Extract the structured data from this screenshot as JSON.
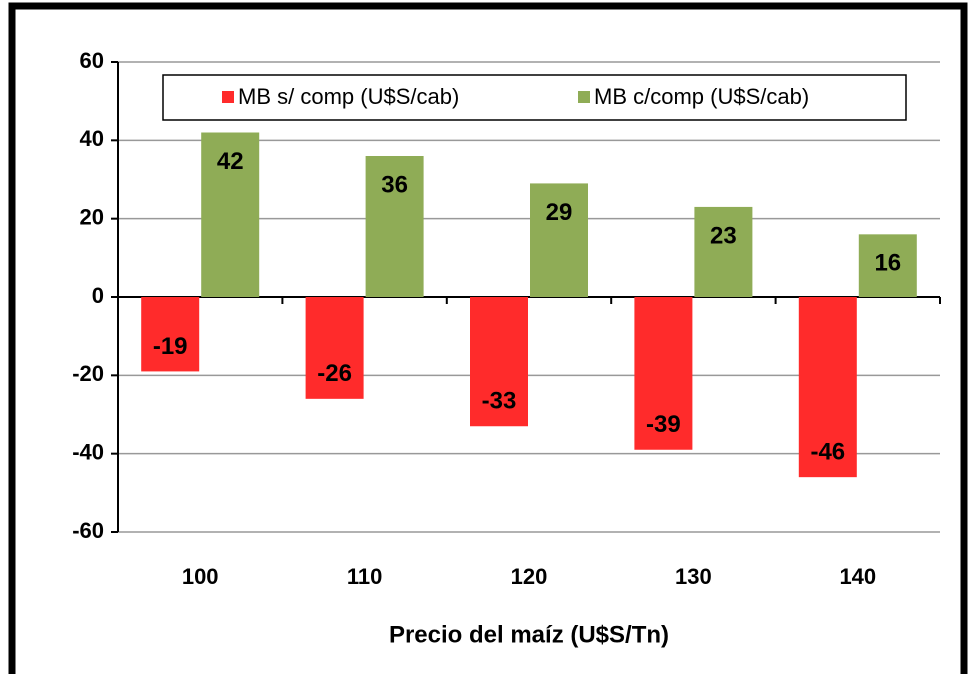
{
  "chart_data": {
    "type": "bar",
    "x_label": "Precio del maíz (U$S/Tn)",
    "categories": [
      "100",
      "110",
      "120",
      "130",
      "140"
    ],
    "series": [
      {
        "name": "MB s/ comp (U$S/cab)",
        "color": "#ff2b2b",
        "values": [
          -19,
          -26,
          -33,
          -39,
          -46
        ]
      },
      {
        "name": "MB c/comp (U$S/cab)",
        "color": "#8fac56",
        "values": [
          42,
          36,
          29,
          23,
          16
        ]
      }
    ],
    "ylim": [
      -60,
      60
    ],
    "yticks": [
      -60,
      -40,
      -20,
      0,
      20,
      40,
      60
    ],
    "grid": true,
    "legend": "top"
  }
}
